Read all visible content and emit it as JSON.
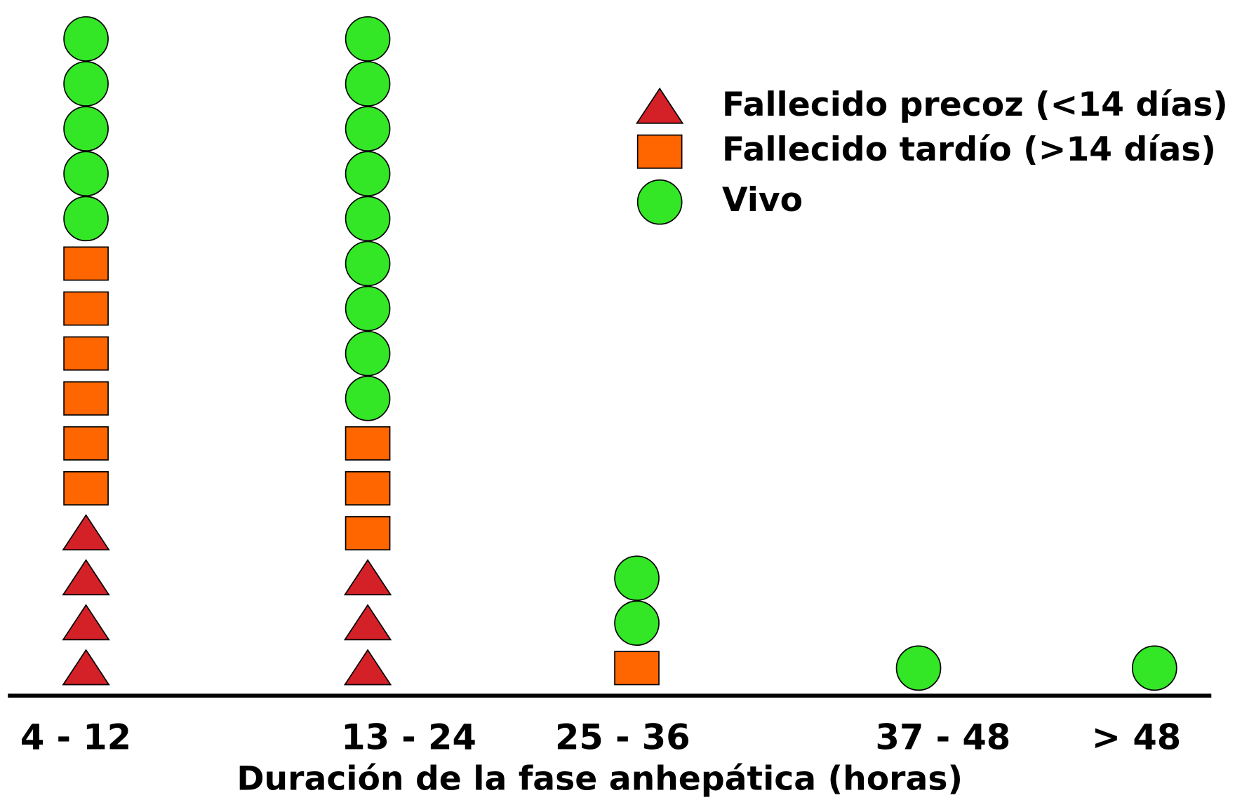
{
  "chart_data": {
    "type": "unit",
    "x_label": "Duración de la fase anhepática (horas)",
    "categories": [
      "4 - 12",
      "13 - 24",
      "25 - 36",
      "37 - 48",
      "> 48"
    ],
    "series": [
      {
        "name": "Fallecido precoz (<14 días)",
        "color": "#d42027",
        "marker": "triangle",
        "values": [
          4,
          3,
          0,
          0,
          0
        ]
      },
      {
        "name": "Fallecido tardío (>14 días)",
        "color": "#ff6600",
        "marker": "square",
        "values": [
          6,
          3,
          1,
          0,
          0
        ]
      },
      {
        "name": "Vivo",
        "color": "#33e626",
        "marker": "circle",
        "values": [
          5,
          9,
          2,
          1,
          1
        ]
      }
    ],
    "legend": "upper right"
  }
}
